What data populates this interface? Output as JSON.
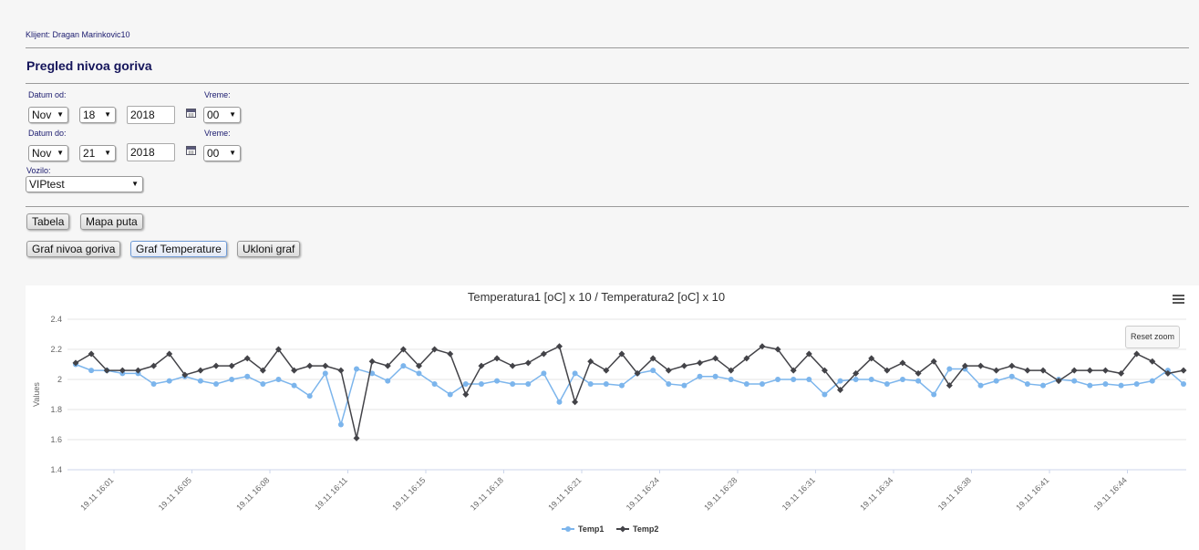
{
  "client_label": "Klijent: Dragan Marinkovic10",
  "page_title": "Pregled nivoa goriva",
  "form": {
    "date_from_label": "Datum od:",
    "time_from_label": "Vreme:",
    "date_to_label": "Datum do:",
    "time_to_label": "Vreme:",
    "vehicle_label": "Vozilo:",
    "from": {
      "month": "Nov",
      "day": "18",
      "year": "2018",
      "hour": "00"
    },
    "to": {
      "month": "Nov",
      "day": "21",
      "year": "2018",
      "hour": "00"
    },
    "vehicle": "VIPtest"
  },
  "buttons": {
    "table": "Tabela",
    "route_map": "Mapa puta",
    "fuel_graph": "Graf nivoa goriva",
    "temp_graph": "Graf Temperature",
    "remove_graph": "Ukloni graf"
  },
  "chart": {
    "reset_zoom": "Reset zoom",
    "menu_icon": "hamburger-menu-icon"
  },
  "chart_data": {
    "type": "line",
    "title": "Temperatura1 [oC] x 10 / Temperatura2 [oC] x 10",
    "ylabel": "Values",
    "ylim": [
      1.4,
      2.4
    ],
    "yticks": [
      "2.4",
      "2.2",
      "2",
      "1.8",
      "1.6",
      "1.4"
    ],
    "xticks": [
      "19.11 16:01",
      "19.11 16:05",
      "19.11 16:08",
      "19.11 16:11",
      "19.11 16:15",
      "19.11 16:18",
      "19.11 16:21",
      "19.11 16:24",
      "19.11 16:28",
      "19.11 16:31",
      "19.11 16:34",
      "19.11 16:38",
      "19.11 16:41",
      "19.11 16:44"
    ],
    "grid": true,
    "legend_position": "bottom-center",
    "series": [
      {
        "name": "Temp1",
        "color": "#7cb5ec",
        "values": [
          2.1,
          2.06,
          2.06,
          2.04,
          2.04,
          1.97,
          1.99,
          2.02,
          1.99,
          1.97,
          2.0,
          2.02,
          1.97,
          2.0,
          1.96,
          1.89,
          2.04,
          1.7,
          2.07,
          2.04,
          1.99,
          2.09,
          2.04,
          1.97,
          1.9,
          1.97,
          1.97,
          1.99,
          1.97,
          1.97,
          2.04,
          1.85,
          2.04,
          1.97,
          1.97,
          1.96,
          2.04,
          2.06,
          1.97,
          1.96,
          2.02,
          2.02,
          2.0,
          1.97,
          1.97,
          2.0,
          2.0,
          2.0,
          1.9,
          1.99,
          2.0,
          2.0,
          1.97,
          2.0,
          1.99,
          1.9,
          2.07,
          2.07,
          1.96,
          1.99,
          2.02,
          1.97,
          1.96,
          2.0,
          1.99,
          1.96,
          1.97,
          1.96,
          1.97,
          1.99,
          2.06,
          1.97
        ]
      },
      {
        "name": "Temp2",
        "color": "#434348",
        "values": [
          2.11,
          2.17,
          2.06,
          2.06,
          2.06,
          2.09,
          2.17,
          2.03,
          2.06,
          2.09,
          2.09,
          2.14,
          2.06,
          2.2,
          2.06,
          2.09,
          2.09,
          2.06,
          1.61,
          2.12,
          2.09,
          2.2,
          2.09,
          2.2,
          2.17,
          1.9,
          2.09,
          2.14,
          2.09,
          2.11,
          2.17,
          2.22,
          1.85,
          2.12,
          2.06,
          2.17,
          2.04,
          2.14,
          2.06,
          2.09,
          2.11,
          2.14,
          2.06,
          2.14,
          2.22,
          2.2,
          2.06,
          2.17,
          2.06,
          1.93,
          2.04,
          2.14,
          2.06,
          2.11,
          2.04,
          2.12,
          1.96,
          2.09,
          2.09,
          2.06,
          2.09,
          2.06,
          2.06,
          1.99,
          2.06,
          2.06,
          2.06,
          2.04,
          2.17,
          2.12,
          2.04,
          2.06
        ]
      }
    ]
  }
}
